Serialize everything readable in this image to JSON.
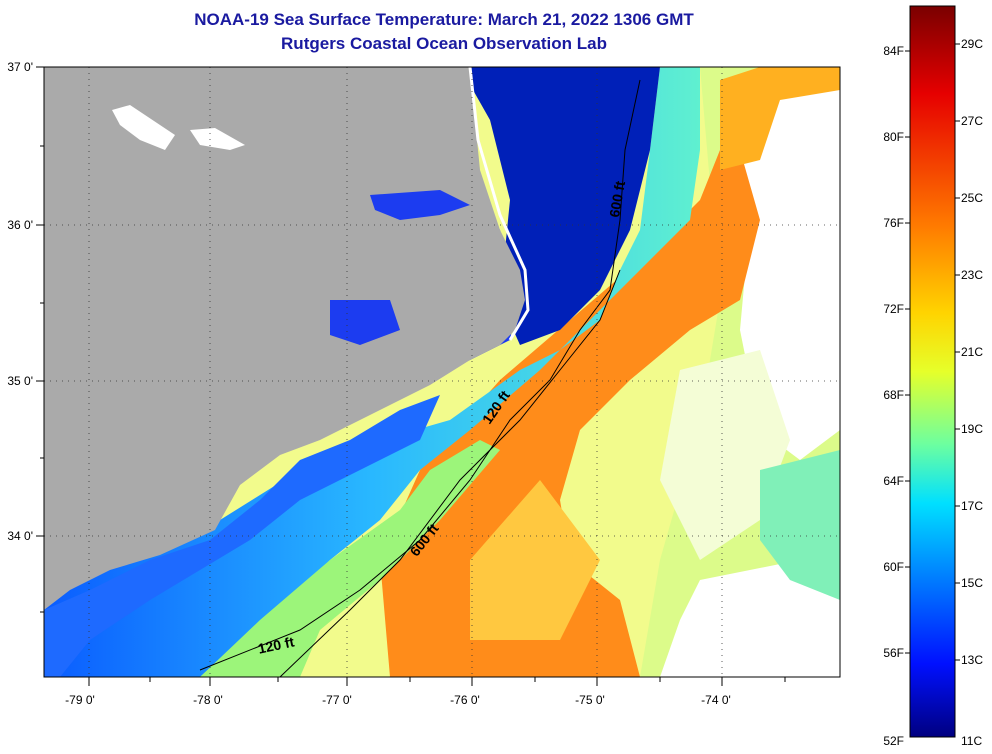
{
  "header": {
    "title": "NOAA-19 Sea Surface Temperature:  March 21, 2022 1306 GMT",
    "subtitle": "Rutgers Coastal Ocean Observation Lab"
  },
  "map": {
    "lat_labels": [
      "37 0'",
      "36 0'",
      "35 0'",
      "34 0'"
    ],
    "lon_labels": [
      "-79 0'",
      "-78 0'",
      "-77 0'",
      "-76 0'",
      "-75 0'",
      "-74 0'"
    ],
    "contours": [
      {
        "label": "600 ft"
      },
      {
        "label": "120 ft"
      },
      {
        "label": "600 ft"
      },
      {
        "label": "120 ft"
      }
    ]
  },
  "colorbar": {
    "fahrenheit_labels": [
      "84F",
      "80F",
      "76F",
      "72F",
      "68F",
      "64F",
      "60F",
      "56F",
      "52F"
    ],
    "celsius_labels": [
      "29C",
      "27C",
      "25C",
      "23C",
      "21C",
      "19C",
      "17C",
      "15C",
      "13C",
      "11C"
    ],
    "colors": [
      "#7a0000",
      "#e60000",
      "#ff6a00",
      "#ffd400",
      "#e6ff2a",
      "#6cffa0",
      "#00d8ff",
      "#0080ff",
      "#0010ff",
      "#000080"
    ]
  }
}
